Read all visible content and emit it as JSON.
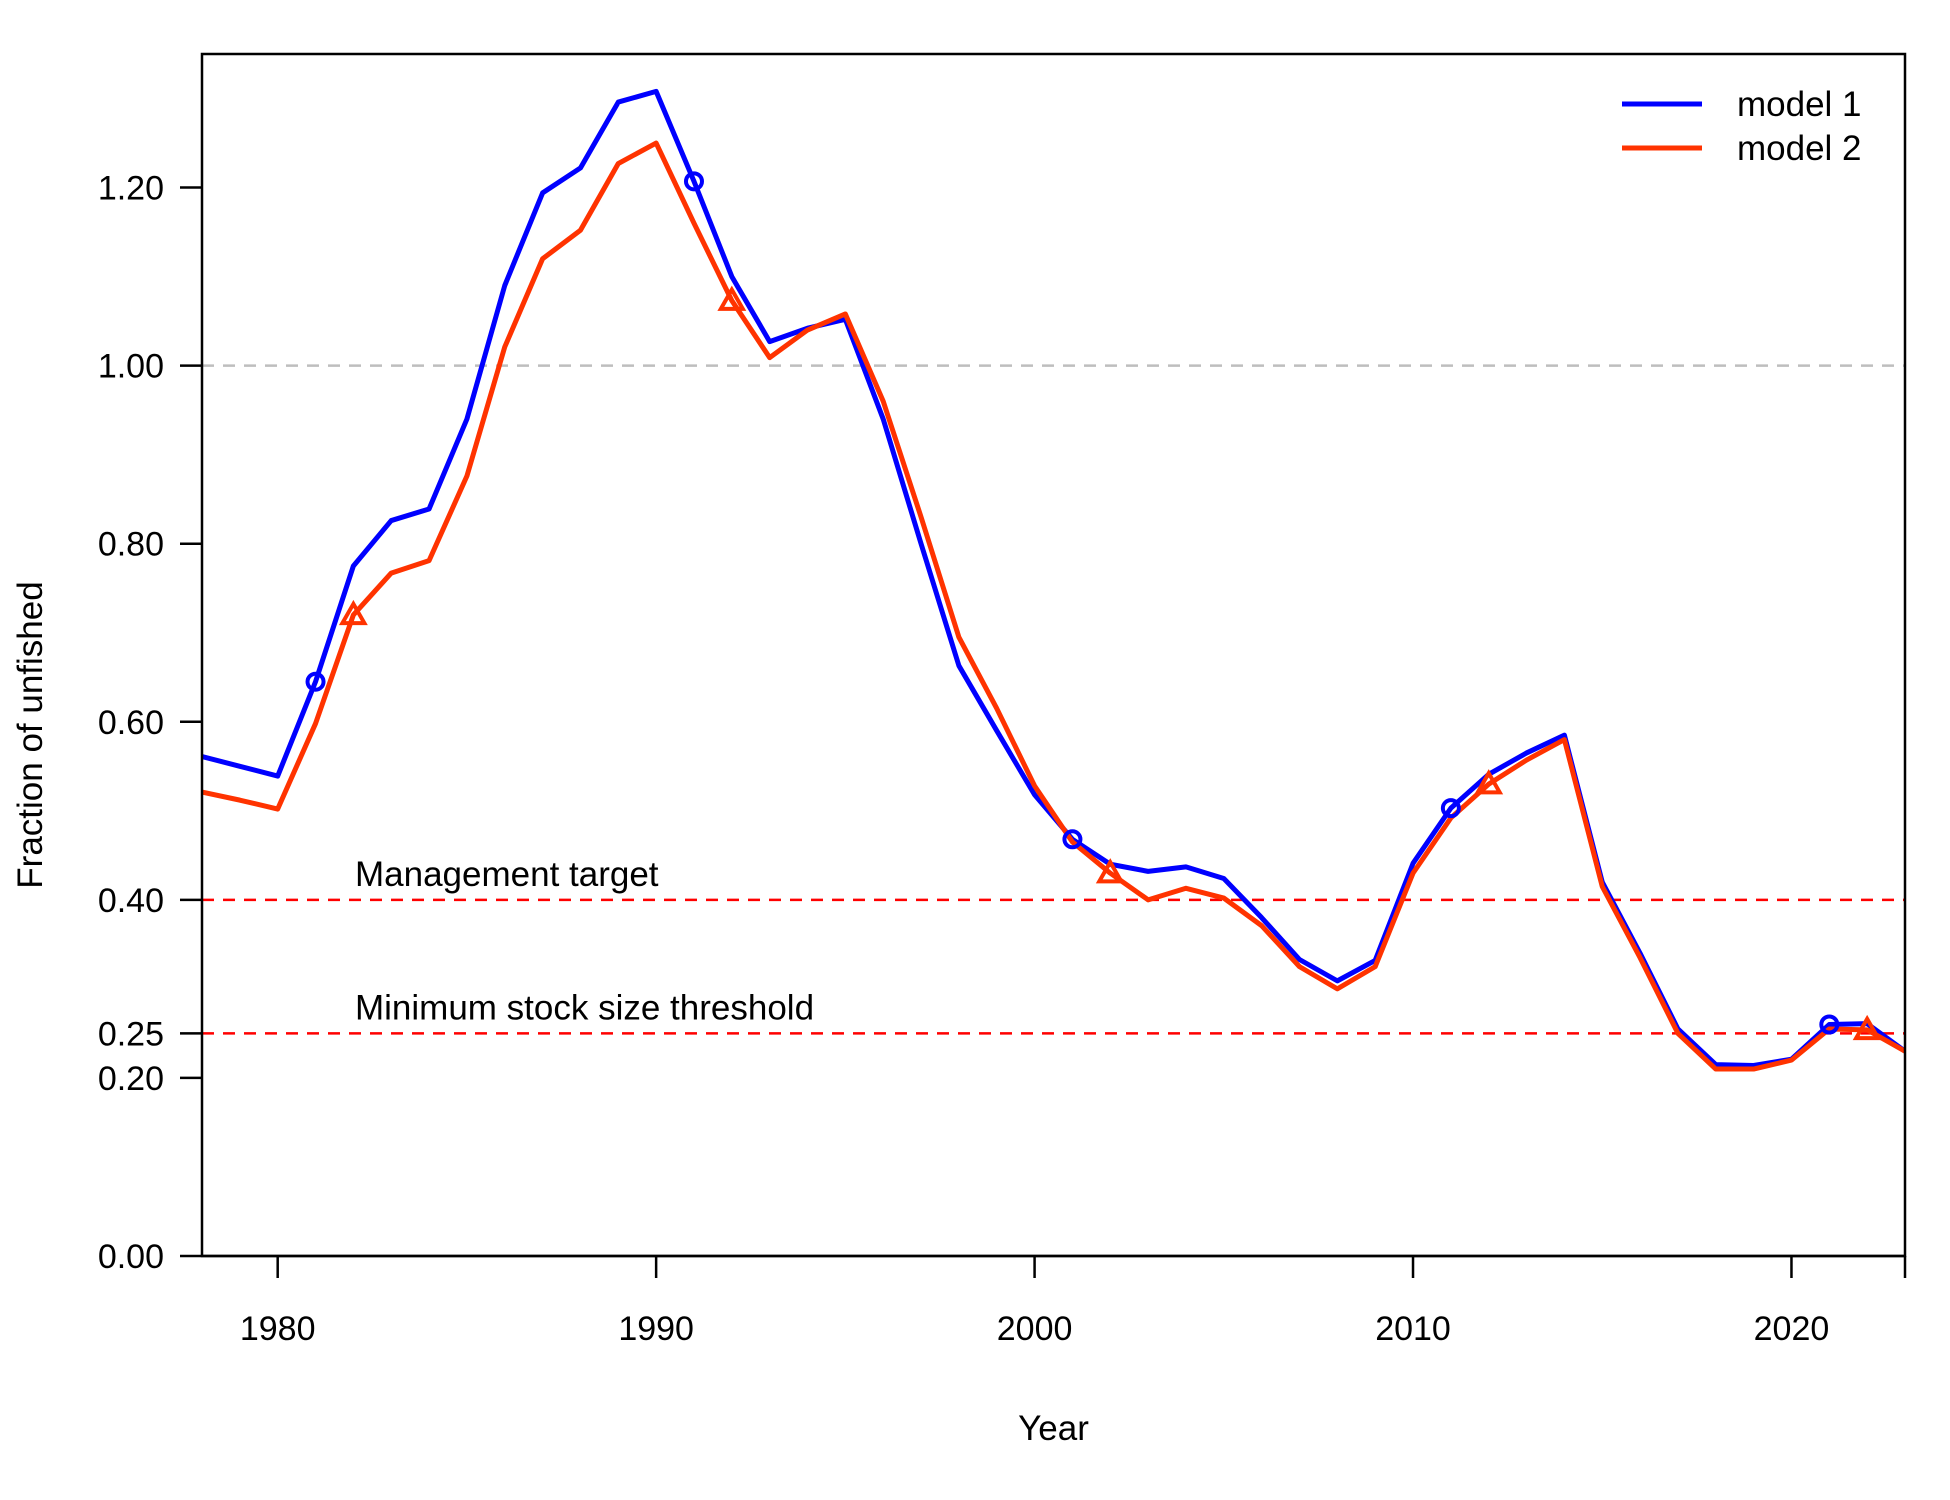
{
  "chart_data": {
    "type": "line",
    "xlabel": "Year",
    "ylabel": "Fraction of unfished",
    "xlim": [
      1978,
      2023
    ],
    "ylim": [
      0,
      1.35
    ],
    "x_ticks": [
      1980,
      1990,
      2000,
      2010,
      2020
    ],
    "x_tick_labels": [
      "1980",
      "1990",
      "2000",
      "2010",
      "2020"
    ],
    "y_ticks": [
      0,
      0.2,
      0.25,
      0.4,
      0.6,
      0.8,
      1.0,
      1.2
    ],
    "y_tick_labels": [
      "0.00",
      "0.20",
      "0.25",
      "0.40",
      "0.60",
      "0.80",
      "1.00",
      "1.20"
    ],
    "legend_position": "top-right",
    "reference_lines": [
      {
        "y": 1.0,
        "color": "#bebebe",
        "style": "dashed",
        "label": ""
      },
      {
        "y": 0.4,
        "color": "#ff0000",
        "style": "dashed",
        "label": "Management target"
      },
      {
        "y": 0.25,
        "color": "#ff0000",
        "style": "dashed",
        "label": "Minimum stock size threshold"
      }
    ],
    "x": [
      1978,
      1979,
      1980,
      1981,
      1982,
      1983,
      1984,
      1985,
      1986,
      1987,
      1988,
      1989,
      1990,
      1991,
      1992,
      1993,
      1994,
      1995,
      1996,
      1997,
      1998,
      1999,
      2000,
      2001,
      2002,
      2003,
      2004,
      2005,
      2006,
      2007,
      2008,
      2009,
      2010,
      2011,
      2012,
      2013,
      2014,
      2015,
      2016,
      2017,
      2018,
      2019,
      2020,
      2021,
      2022,
      2023
    ],
    "series": [
      {
        "name": "model 1",
        "color": "#0000ff",
        "marker": "circle",
        "marker_years": [
          1981,
          1991,
          2001,
          2011,
          2021
        ],
        "values": [
          0.561,
          0.55,
          0.539,
          0.645,
          0.775,
          0.826,
          0.839,
          0.94,
          1.09,
          1.194,
          1.222,
          1.296,
          1.308,
          1.207,
          1.1,
          1.027,
          1.042,
          1.052,
          0.94,
          0.8,
          0.663,
          0.59,
          0.518,
          0.468,
          0.44,
          0.432,
          0.437,
          0.424,
          0.38,
          0.333,
          0.309,
          0.332,
          0.441,
          0.503,
          0.541,
          0.565,
          0.585,
          0.42,
          0.34,
          0.255,
          0.215,
          0.214,
          0.221,
          0.26,
          0.261,
          0.23
        ]
      },
      {
        "name": "model 2",
        "color": "#ff3300",
        "marker": "triangle",
        "marker_years": [
          1982,
          1992,
          2002,
          2012,
          2022
        ],
        "values": [
          0.521,
          0.512,
          0.502,
          0.598,
          0.72,
          0.767,
          0.781,
          0.876,
          1.021,
          1.12,
          1.152,
          1.227,
          1.25,
          1.16,
          1.073,
          1.009,
          1.04,
          1.058,
          0.96,
          0.83,
          0.695,
          0.615,
          0.528,
          0.465,
          0.43,
          0.4,
          0.413,
          0.402,
          0.371,
          0.325,
          0.3,
          0.325,
          0.43,
          0.492,
          0.53,
          0.557,
          0.58,
          0.415,
          0.335,
          0.25,
          0.21,
          0.21,
          0.22,
          0.255,
          0.254,
          0.23
        ]
      }
    ]
  }
}
